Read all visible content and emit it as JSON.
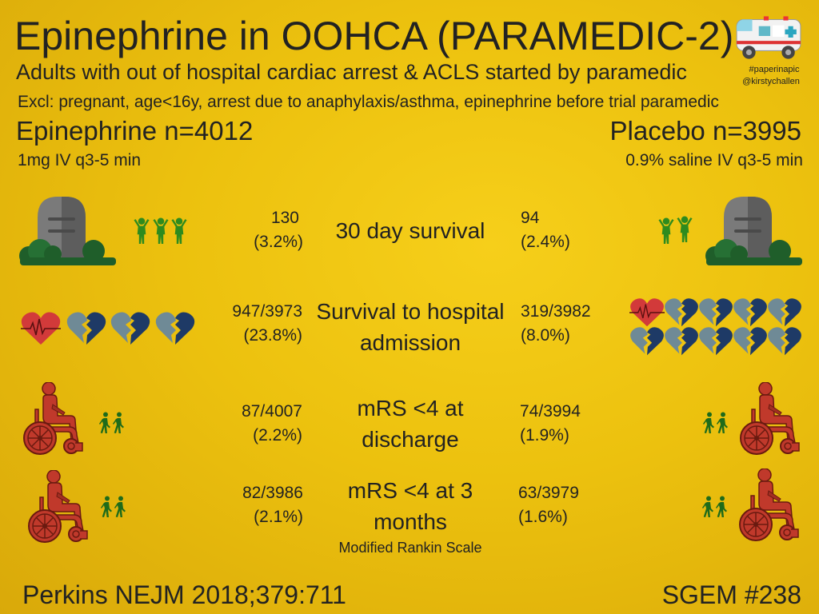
{
  "header": {
    "title": "Epinephrine in OOHCA (PARAMEDIC-2)",
    "subtitle": "Adults with out of hospital cardiac arrest & ACLS started by paramedic",
    "exclusions": "Excl: pregnant, age<16y, arrest due to anaphylaxis/asthma, epinephrine before trial paramedic",
    "hashtag": "#paperinapic",
    "handle": "@kirstychallen"
  },
  "groups": {
    "epi_label": "Epinephrine n=4012",
    "epi_dose": "1mg IV q3-5 min",
    "placebo_label": "Placebo n=3995",
    "placebo_dose": "0.9% saline IV q3-5 min"
  },
  "outcomes": [
    {
      "name": "30 day survival",
      "epi_count": "130",
      "epi_pct": "(3.2%)",
      "placebo_count": "94",
      "placebo_pct": "(2.4%)"
    },
    {
      "name": "Survival to hospital admission",
      "epi_count": "947/3973",
      "epi_pct": "(23.8%)",
      "placebo_count": "319/3982",
      "placebo_pct": "(8.0%)"
    },
    {
      "name": "mRS <4 at discharge",
      "epi_count": "87/4007",
      "epi_pct": "(2.2%)",
      "placebo_count": "74/3994",
      "placebo_pct": "(1.9%)"
    },
    {
      "name": "mRS <4 at 3 months",
      "epi_count": "82/3986",
      "epi_pct": "(2.1%)",
      "placebo_count": "63/3979",
      "placebo_pct": "(1.6%)"
    }
  ],
  "mrs_note": "Modified Rankin Scale",
  "footer": {
    "citation": "Perkins NEJM 2018;379:711",
    "episode": "SGEM #238"
  },
  "icons": [
    "ambulance-icon",
    "tombstone-icon",
    "person-icon",
    "heart-icon",
    "broken-heart-icon",
    "wheelchair-icon",
    "walking-person-icon"
  ],
  "colors": {
    "background": "#ecc10e",
    "people": "#2e8b1e",
    "tomb": "#7a7a7a",
    "bush": "#1f5e2a",
    "heart": "#d23a3a",
    "broken_heart": "#1e3a66",
    "wheelchair": "#c0392b"
  }
}
